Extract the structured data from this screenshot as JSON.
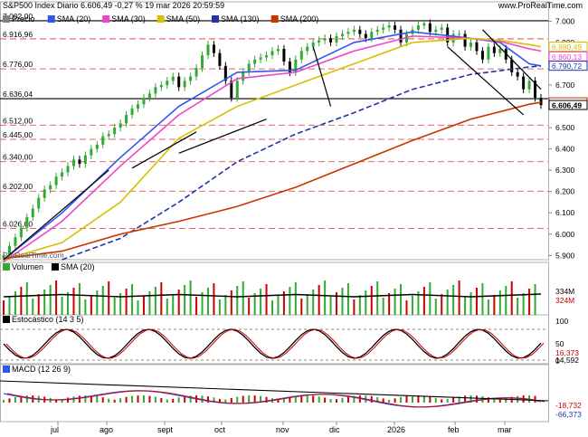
{
  "header": {
    "title": "S&P500 Index Diario 6.606,49 -0,27 % 19 mar 2026 20:59:59",
    "brand": "www.ProRealTime.com",
    "watermark": "ProRealTime.com"
  },
  "price_panel": {
    "legend": [
      {
        "label": "Precio",
        "color": "#808080",
        "icon": "price-swatch"
      },
      {
        "label": "SMA (20)",
        "color": "#3355ee",
        "icon": "sma20-swatch"
      },
      {
        "label": "SMA (30)",
        "color": "#ee44cc",
        "icon": "sma30-swatch"
      },
      {
        "label": "SMA (50)",
        "color": "#d8c000",
        "icon": "sma50-swatch"
      },
      {
        "label": "SMA (130)",
        "color": "#2233aa",
        "icon": "sma130-swatch"
      },
      {
        "label": "SMA (200)",
        "color": "#cc3300",
        "icon": "sma200-swatch"
      }
    ],
    "left_levels": [
      "7.002,00",
      "6.916,96",
      "6.776,00",
      "6.636,04",
      "6.512,00",
      "6.445,00",
      "6.340,00",
      "6.202,00",
      "6.026,00",
      "5.835,00"
    ],
    "right_ticks": [
      "7.000",
      "6.900",
      "6.800",
      "6.700",
      "6.600",
      "6.500",
      "6.400",
      "6.300",
      "6.200",
      "6.100",
      "6.000",
      "5.900"
    ],
    "right_value_tags": [
      {
        "text": "6.880,49",
        "color": "#d8c000"
      },
      {
        "text": "6.860,13",
        "color": "#ee44cc"
      },
      {
        "text": "6.790,72",
        "color": "#2233aa"
      },
      {
        "text": "6.619,06",
        "color": "#cc3300"
      },
      {
        "text": "6.606,49",
        "color": "#000000"
      }
    ]
  },
  "volume_panel": {
    "legend": [
      {
        "label": "Volumen",
        "color": "#33aa33",
        "icon": "volume-swatch"
      },
      {
        "label": "SMA (20)",
        "color": "#000000",
        "icon": "volume-sma-swatch"
      }
    ],
    "right_labels": [
      {
        "text": "334M",
        "color": "#000000"
      },
      {
        "text": "324M",
        "color": "#cc0000"
      }
    ]
  },
  "stochastic_panel": {
    "legend": [
      {
        "label": "Estocástico (14 3 5)",
        "color": "#000000",
        "icon": "stoch-swatch"
      }
    ],
    "right_ticks": [
      "100",
      "50",
      "0"
    ],
    "right_value_tags": [
      {
        "text": "16,373",
        "color": "#cc0000"
      },
      {
        "text": "14,592",
        "color": "#000000"
      }
    ]
  },
  "macd_panel": {
    "legend": [
      {
        "label": "MACD (12 26 9)",
        "color": "#3355ee",
        "icon": "macd-swatch"
      }
    ],
    "right_value_tags": [
      {
        "text": "-18,732",
        "color": "#cc0000"
      },
      {
        "text": "-66,373",
        "color": "#2233aa"
      }
    ]
  },
  "x_axis": {
    "labels": [
      "jul",
      "ago",
      "sept",
      "oct",
      "nov",
      "dic",
      "2026",
      "feb",
      "mar"
    ]
  },
  "chart_data": {
    "type": "line",
    "title": "S&P500 Index Diario 6.606,49 -0,27 % 19 mar 2026 20:59:59",
    "ylim": [
      5880,
      7040
    ],
    "y_ticks": [
      7000,
      6900,
      6800,
      6700,
      6600,
      6500,
      6400,
      6300,
      6200,
      6100,
      6000,
      5900
    ],
    "x_labels": [
      "jul",
      "ago",
      "sept",
      "oct",
      "nov",
      "dic",
      "2026",
      "feb",
      "mar"
    ],
    "reference_levels": [
      7002.0,
      6916.96,
      6776.0,
      6636.04,
      6512.0,
      6445.0,
      6340.0,
      6202.0,
      6026.0,
      5835.0
    ],
    "series": [
      {
        "name": "Precio",
        "type": "candlestick",
        "color_up": "#33aa33",
        "color_down": "#000000",
        "x": [
          0,
          2,
          4,
          6,
          8,
          10,
          12,
          14,
          16,
          18,
          20,
          22,
          24,
          26,
          28,
          30,
          32,
          34,
          36,
          38,
          40,
          42,
          44,
          46,
          48,
          50,
          52,
          54,
          56,
          58,
          60,
          62,
          64,
          66,
          68,
          70,
          72,
          74,
          76,
          78,
          80,
          82,
          84,
          86,
          88,
          90,
          92,
          94,
          96,
          98,
          100,
          102,
          104,
          106,
          108,
          110,
          112,
          114,
          116,
          118,
          120,
          122,
          124,
          126,
          128,
          130,
          132,
          134,
          136,
          138,
          140,
          142,
          144,
          146,
          148,
          150,
          152,
          154,
          156,
          158,
          160,
          162,
          164,
          166,
          168,
          170,
          172,
          174,
          176,
          178,
          180,
          182,
          184
        ],
        "close": [
          5900,
          5945,
          5985,
          6030,
          6080,
          6120,
          6170,
          6210,
          6230,
          6270,
          6290,
          6320,
          6350,
          6330,
          6370,
          6400,
          6420,
          6460,
          6470,
          6500,
          6520,
          6560,
          6590,
          6610,
          6640,
          6660,
          6690,
          6700,
          6720,
          6740,
          6690,
          6720,
          6740,
          6780,
          6840,
          6890,
          6850,
          6790,
          6720,
          6640,
          6720,
          6760,
          6800,
          6820,
          6830,
          6840,
          6860,
          6870,
          6810,
          6760,
          6820,
          6860,
          6880,
          6900,
          6910,
          6920,
          6900,
          6930,
          6940,
          6950,
          6960,
          6940,
          6920,
          6950,
          6960,
          6970,
          6980,
          6960,
          6900,
          6940,
          6960,
          6980,
          6990,
          6950,
          6960,
          6970,
          6900,
          6940,
          6940,
          6880,
          6900,
          6860,
          6820,
          6880,
          6850,
          6870,
          6820,
          6760,
          6740,
          6680,
          6720,
          6640,
          6606
        ]
      },
      {
        "name": "SMA (20)",
        "color": "#3355ee",
        "x": [
          0,
          20,
          40,
          60,
          80,
          100,
          120,
          140,
          160,
          170,
          180,
          184
        ],
        "y": [
          5880,
          6100,
          6360,
          6600,
          6760,
          6770,
          6900,
          6950,
          6920,
          6900,
          6800,
          6790
        ]
      },
      {
        "name": "SMA (30)",
        "color": "#ee44cc",
        "x": [
          0,
          20,
          40,
          60,
          80,
          100,
          120,
          140,
          160,
          170,
          180,
          184
        ],
        "y": [
          5870,
          6060,
          6320,
          6560,
          6730,
          6760,
          6860,
          6930,
          6920,
          6905,
          6870,
          6860
        ]
      },
      {
        "name": "SMA (50)",
        "color": "#d8c000",
        "x": [
          0,
          20,
          40,
          60,
          80,
          100,
          120,
          140,
          160,
          170,
          180,
          184
        ],
        "y": [
          5880,
          5960,
          6150,
          6450,
          6600,
          6700,
          6800,
          6900,
          6920,
          6910,
          6890,
          6880
        ]
      },
      {
        "name": "SMA (130)",
        "color": "#2233aa",
        "dashed": true,
        "x": [
          20,
          40,
          60,
          80,
          100,
          120,
          140,
          160,
          180,
          184
        ],
        "y": [
          5880,
          5980,
          6150,
          6340,
          6470,
          6570,
          6680,
          6750,
          6785,
          6790
        ]
      },
      {
        "name": "SMA (200)",
        "color": "#cc3300",
        "x": [
          0,
          20,
          40,
          60,
          80,
          100,
          120,
          140,
          160,
          180,
          184
        ],
        "y": [
          5885,
          5920,
          6000,
          6060,
          6130,
          6220,
          6330,
          6440,
          6540,
          6610,
          6619
        ]
      }
    ]
  }
}
